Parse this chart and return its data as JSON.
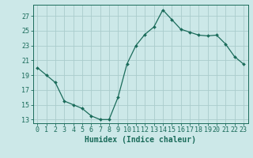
{
  "x": [
    0,
    1,
    2,
    3,
    4,
    5,
    6,
    7,
    8,
    9,
    10,
    11,
    12,
    13,
    14,
    15,
    16,
    17,
    18,
    19,
    20,
    21,
    22,
    23
  ],
  "y": [
    20.0,
    19.0,
    18.0,
    15.5,
    15.0,
    14.5,
    13.5,
    13.0,
    13.0,
    16.0,
    20.5,
    23.0,
    24.5,
    25.5,
    27.8,
    26.5,
    25.2,
    24.8,
    24.4,
    24.3,
    24.4,
    23.2,
    21.5,
    20.5
  ],
  "line_color": "#1a6b5a",
  "marker": "D",
  "marker_size": 2,
  "bg_color": "#cce8e8",
  "grid_color": "#aacccc",
  "xlabel": "Humidex (Indice chaleur)",
  "xlim": [
    -0.5,
    23.5
  ],
  "ylim": [
    12.5,
    28.5
  ],
  "yticks": [
    13,
    15,
    17,
    19,
    21,
    23,
    25,
    27
  ],
  "xticks": [
    0,
    1,
    2,
    3,
    4,
    5,
    6,
    7,
    8,
    9,
    10,
    11,
    12,
    13,
    14,
    15,
    16,
    17,
    18,
    19,
    20,
    21,
    22,
    23
  ],
  "tick_color": "#1a6b5a",
  "axis_color": "#1a6b5a",
  "label_fontsize": 7,
  "tick_fontsize": 6
}
